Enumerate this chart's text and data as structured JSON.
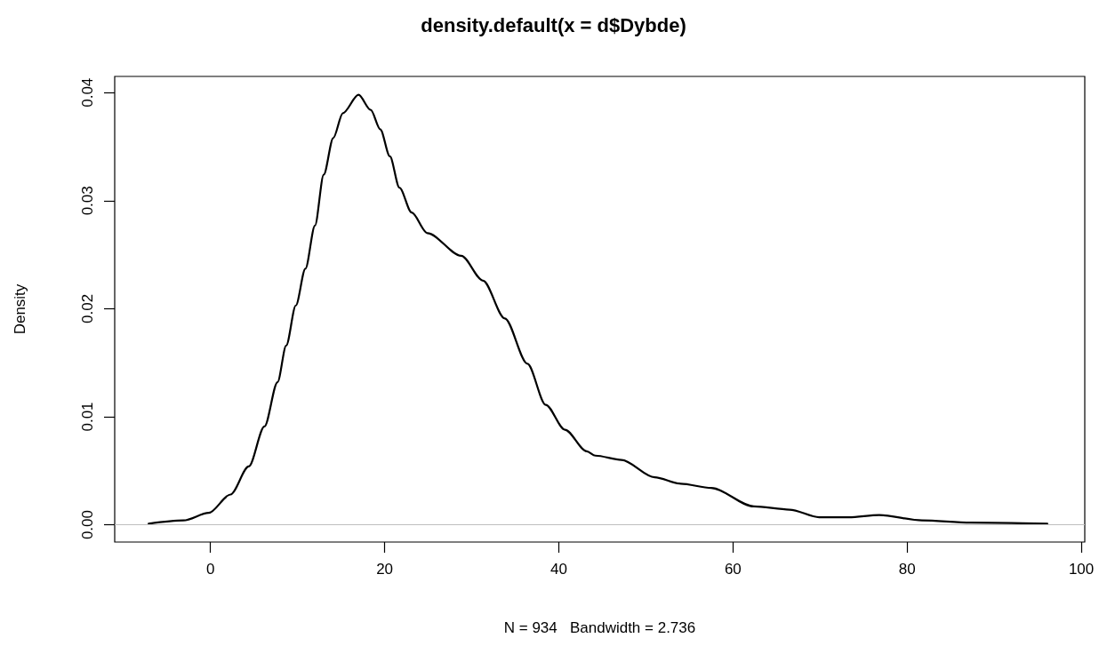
{
  "chart_data": {
    "type": "line",
    "title": "density.default(x = d$Dybde)",
    "xlabel": "N = 934   Bandwidth = 2.736",
    "ylabel": "Density",
    "xlim": [
      -11.0,
      100.4
    ],
    "xticks": [
      0,
      20,
      40,
      60,
      80,
      100
    ],
    "ylim": [
      -0.0016,
      0.0415
    ],
    "yticks": [
      {
        "value": 0,
        "label": "0.00"
      },
      {
        "value": 0.01,
        "label": "0.01"
      },
      {
        "value": 0.02,
        "label": "0.02"
      },
      {
        "value": 0.03,
        "label": "0.03"
      },
      {
        "value": 0.04,
        "label": "0.04"
      }
    ],
    "grid": false,
    "marker": "none",
    "line_style": "solid",
    "ref_lines": [
      {
        "axis": "y",
        "value": 0,
        "color": "#bebebe"
      }
    ],
    "series": [
      {
        "color": "#000000",
        "x": [
          -7.1,
          -3.1,
          -0.2,
          2.3,
          4.4,
          6.2,
          7.7,
          8.7,
          9.8,
          10.9,
          12.0,
          13.0,
          14.1,
          15.2,
          17.0,
          18.4,
          19.5,
          20.6,
          21.7,
          23.1,
          24.9,
          28.8,
          31.3,
          33.8,
          36.4,
          38.5,
          40.7,
          43.2,
          44.2,
          47.2,
          51.0,
          54.0,
          57.5,
          62.4,
          66.5,
          69.9,
          73.3,
          76.8,
          81.7,
          87.3,
          96.1
        ],
        "values": [
          0.0001,
          0.0004,
          0.0011,
          0.0028,
          0.0054,
          0.0091,
          0.0132,
          0.0166,
          0.0203,
          0.0237,
          0.0277,
          0.0324,
          0.0358,
          0.0381,
          0.0398,
          0.0384,
          0.0366,
          0.0341,
          0.0312,
          0.0289,
          0.027,
          0.0249,
          0.0226,
          0.0191,
          0.0149,
          0.0111,
          0.0088,
          0.0068,
          0.0064,
          0.006,
          0.0044,
          0.0038,
          0.0034,
          0.0017,
          0.0014,
          0.0007,
          0.0007,
          0.0009,
          0.0004,
          0.0002,
          0.0001
        ]
      }
    ]
  }
}
